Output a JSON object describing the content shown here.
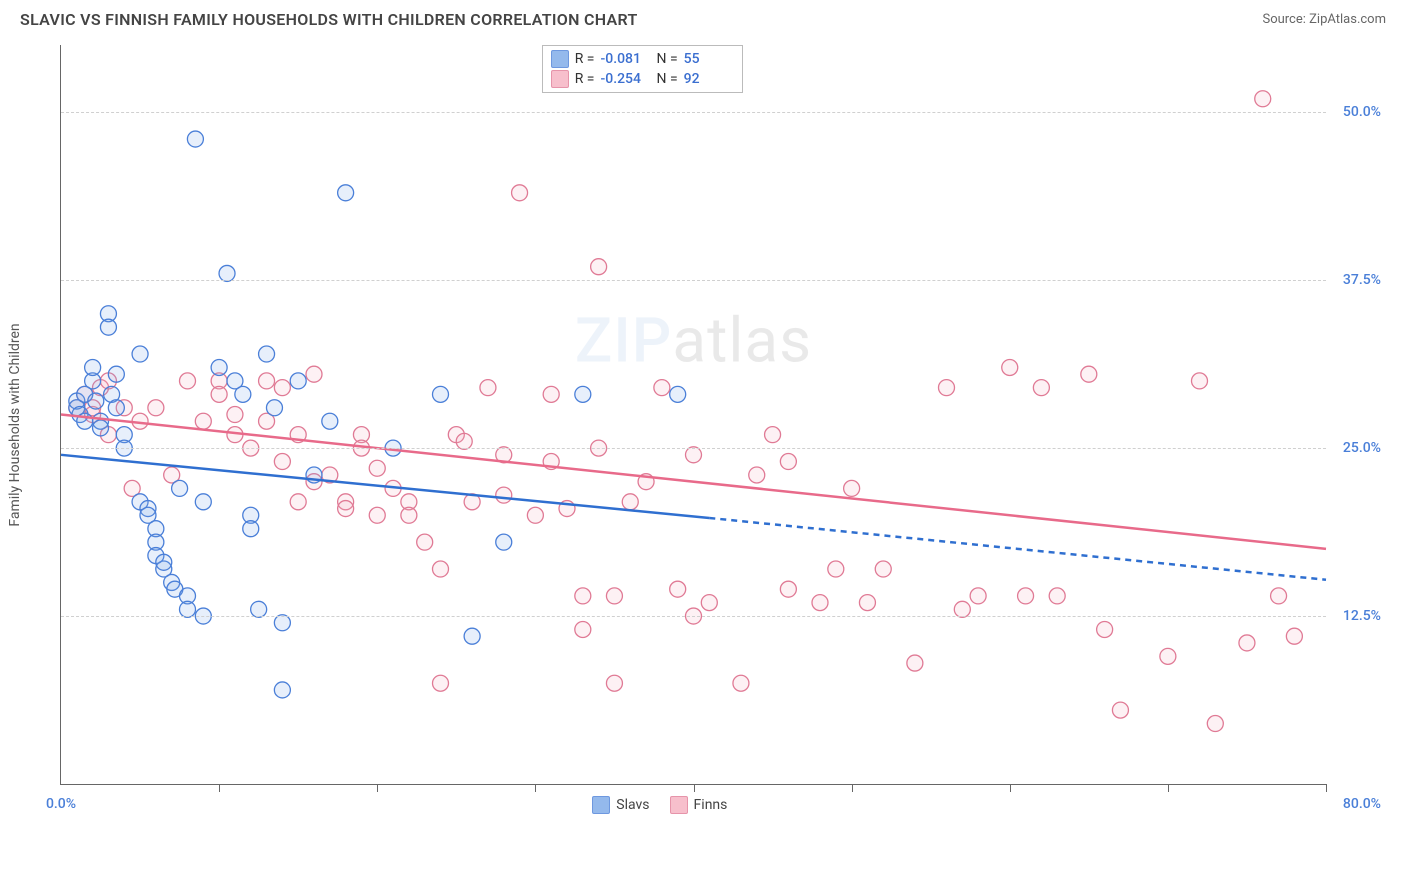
{
  "header": {
    "title": "SLAVIC VS FINNISH FAMILY HOUSEHOLDS WITH CHILDREN CORRELATION CHART",
    "source": "Source: ZipAtlas.com"
  },
  "watermark": {
    "zip": "ZIP",
    "atlas": "atlas"
  },
  "chart": {
    "type": "scatter",
    "ylabel": "Family Households with Children",
    "xlim": [
      0,
      80
    ],
    "ylim": [
      0,
      55
    ],
    "xticks": [
      10,
      20,
      30,
      40,
      50,
      60,
      70,
      80
    ],
    "yticks": [
      12.5,
      25.0,
      37.5,
      50.0
    ],
    "ytick_labels": [
      "12.5%",
      "25.0%",
      "37.5%",
      "50.0%"
    ],
    "xaxis_min_label": "0.0%",
    "xaxis_max_label": "80.0%",
    "grid_color": "#d0d0d0",
    "background_color": "#ffffff",
    "axis_label_color": "#4a7fd8",
    "marker_radius": 8,
    "marker_stroke_width": 1.3,
    "marker_fill_opacity": 0.18,
    "series": [
      {
        "key": "slavs",
        "name": "Slavs",
        "fill": "#7aa8e8",
        "stroke": "#4a7fd8",
        "line_color": "#2f6fd0",
        "R": "-0.081",
        "N": "55",
        "trend": {
          "x1": 0,
          "y1": 24.5,
          "x2": 41,
          "y2": 19.8,
          "x2_ext": 80,
          "y2_ext": 15.2
        },
        "points": [
          [
            1,
            28
          ],
          [
            1,
            28.5
          ],
          [
            1.2,
            27.5
          ],
          [
            1.5,
            29
          ],
          [
            1.5,
            27
          ],
          [
            2,
            30
          ],
          [
            2,
            31
          ],
          [
            2.2,
            28.5
          ],
          [
            2.5,
            27
          ],
          [
            2.5,
            26.5
          ],
          [
            3,
            35
          ],
          [
            3,
            34
          ],
          [
            3.2,
            29
          ],
          [
            3.5,
            28
          ],
          [
            3.5,
            30.5
          ],
          [
            4,
            26
          ],
          [
            4,
            25
          ],
          [
            5,
            32
          ],
          [
            5,
            21
          ],
          [
            5.5,
            20.5
          ],
          [
            5.5,
            20
          ],
          [
            6,
            19
          ],
          [
            6,
            18
          ],
          [
            6,
            17
          ],
          [
            6.5,
            16
          ],
          [
            6.5,
            16.5
          ],
          [
            7,
            15
          ],
          [
            7.2,
            14.5
          ],
          [
            7.5,
            22
          ],
          [
            8,
            14
          ],
          [
            8,
            13
          ],
          [
            8.5,
            48
          ],
          [
            9,
            12.5
          ],
          [
            9,
            21
          ],
          [
            10,
            31
          ],
          [
            10.5,
            38
          ],
          [
            11,
            30
          ],
          [
            11.5,
            29
          ],
          [
            12,
            20
          ],
          [
            12,
            19
          ],
          [
            12.5,
            13
          ],
          [
            13,
            32
          ],
          [
            13.5,
            28
          ],
          [
            14,
            7
          ],
          [
            14,
            12
          ],
          [
            15,
            30
          ],
          [
            16,
            23
          ],
          [
            17,
            27
          ],
          [
            18,
            44
          ],
          [
            21,
            25
          ],
          [
            24,
            29
          ],
          [
            26,
            11
          ],
          [
            28,
            18
          ],
          [
            33,
            29
          ],
          [
            39,
            29
          ]
        ]
      },
      {
        "key": "finns",
        "name": "Finns",
        "fill": "#f6b0c0",
        "stroke": "#e07a95",
        "line_color": "#e86a8a",
        "R": "-0.254",
        "N": "92",
        "trend": {
          "x1": 0,
          "y1": 27.5,
          "x2": 80,
          "y2": 17.5
        },
        "points": [
          [
            1,
            28
          ],
          [
            1.5,
            29
          ],
          [
            2,
            27.5
          ],
          [
            2,
            28
          ],
          [
            2.5,
            29.5
          ],
          [
            3,
            26
          ],
          [
            3,
            30
          ],
          [
            4,
            28
          ],
          [
            4.5,
            22
          ],
          [
            5,
            27
          ],
          [
            6,
            28
          ],
          [
            7,
            23
          ],
          [
            8,
            30
          ],
          [
            9,
            27
          ],
          [
            10,
            30
          ],
          [
            10,
            29
          ],
          [
            11,
            27.5
          ],
          [
            11,
            26
          ],
          [
            12,
            25
          ],
          [
            13,
            30
          ],
          [
            13,
            27
          ],
          [
            14,
            24
          ],
          [
            14,
            29.5
          ],
          [
            15,
            21
          ],
          [
            15,
            26
          ],
          [
            16,
            30.5
          ],
          [
            16,
            22.5
          ],
          [
            17,
            23
          ],
          [
            18,
            21
          ],
          [
            18,
            20.5
          ],
          [
            19,
            26
          ],
          [
            19,
            25
          ],
          [
            20,
            20
          ],
          [
            20,
            23.5
          ],
          [
            21,
            22
          ],
          [
            22,
            21
          ],
          [
            22,
            20
          ],
          [
            23,
            18
          ],
          [
            24,
            7.5
          ],
          [
            24,
            16
          ],
          [
            25,
            26
          ],
          [
            25.5,
            25.5
          ],
          [
            26,
            21
          ],
          [
            27,
            29.5
          ],
          [
            28,
            24.5
          ],
          [
            28,
            21.5
          ],
          [
            29,
            44
          ],
          [
            30,
            20
          ],
          [
            31,
            24
          ],
          [
            31,
            29
          ],
          [
            32,
            20.5
          ],
          [
            33,
            11.5
          ],
          [
            33,
            14
          ],
          [
            34,
            25
          ],
          [
            34,
            38.5
          ],
          [
            35,
            7.5
          ],
          [
            35,
            14
          ],
          [
            36,
            21
          ],
          [
            37,
            22.5
          ],
          [
            38,
            29.5
          ],
          [
            39,
            14.5
          ],
          [
            40,
            12.5
          ],
          [
            40,
            24.5
          ],
          [
            41,
            13.5
          ],
          [
            43,
            7.5
          ],
          [
            44,
            23
          ],
          [
            45,
            26
          ],
          [
            46,
            14.5
          ],
          [
            46,
            24
          ],
          [
            48,
            13.5
          ],
          [
            49,
            16
          ],
          [
            50,
            22
          ],
          [
            51,
            13.5
          ],
          [
            52,
            16
          ],
          [
            54,
            9
          ],
          [
            56,
            29.5
          ],
          [
            57,
            13
          ],
          [
            58,
            14
          ],
          [
            60,
            31
          ],
          [
            61,
            14
          ],
          [
            62,
            29.5
          ],
          [
            63,
            14
          ],
          [
            65,
            30.5
          ],
          [
            66,
            11.5
          ],
          [
            67,
            5.5
          ],
          [
            70,
            9.5
          ],
          [
            72,
            30
          ],
          [
            73,
            4.5
          ],
          [
            75,
            10.5
          ],
          [
            76,
            51
          ],
          [
            77,
            14
          ],
          [
            78,
            11
          ]
        ]
      }
    ],
    "stats_labels": {
      "R": "R =",
      "N": "N ="
    }
  },
  "legend": {
    "items": [
      {
        "key": "slavs",
        "label": "Slavs"
      },
      {
        "key": "finns",
        "label": "Finns"
      }
    ]
  }
}
